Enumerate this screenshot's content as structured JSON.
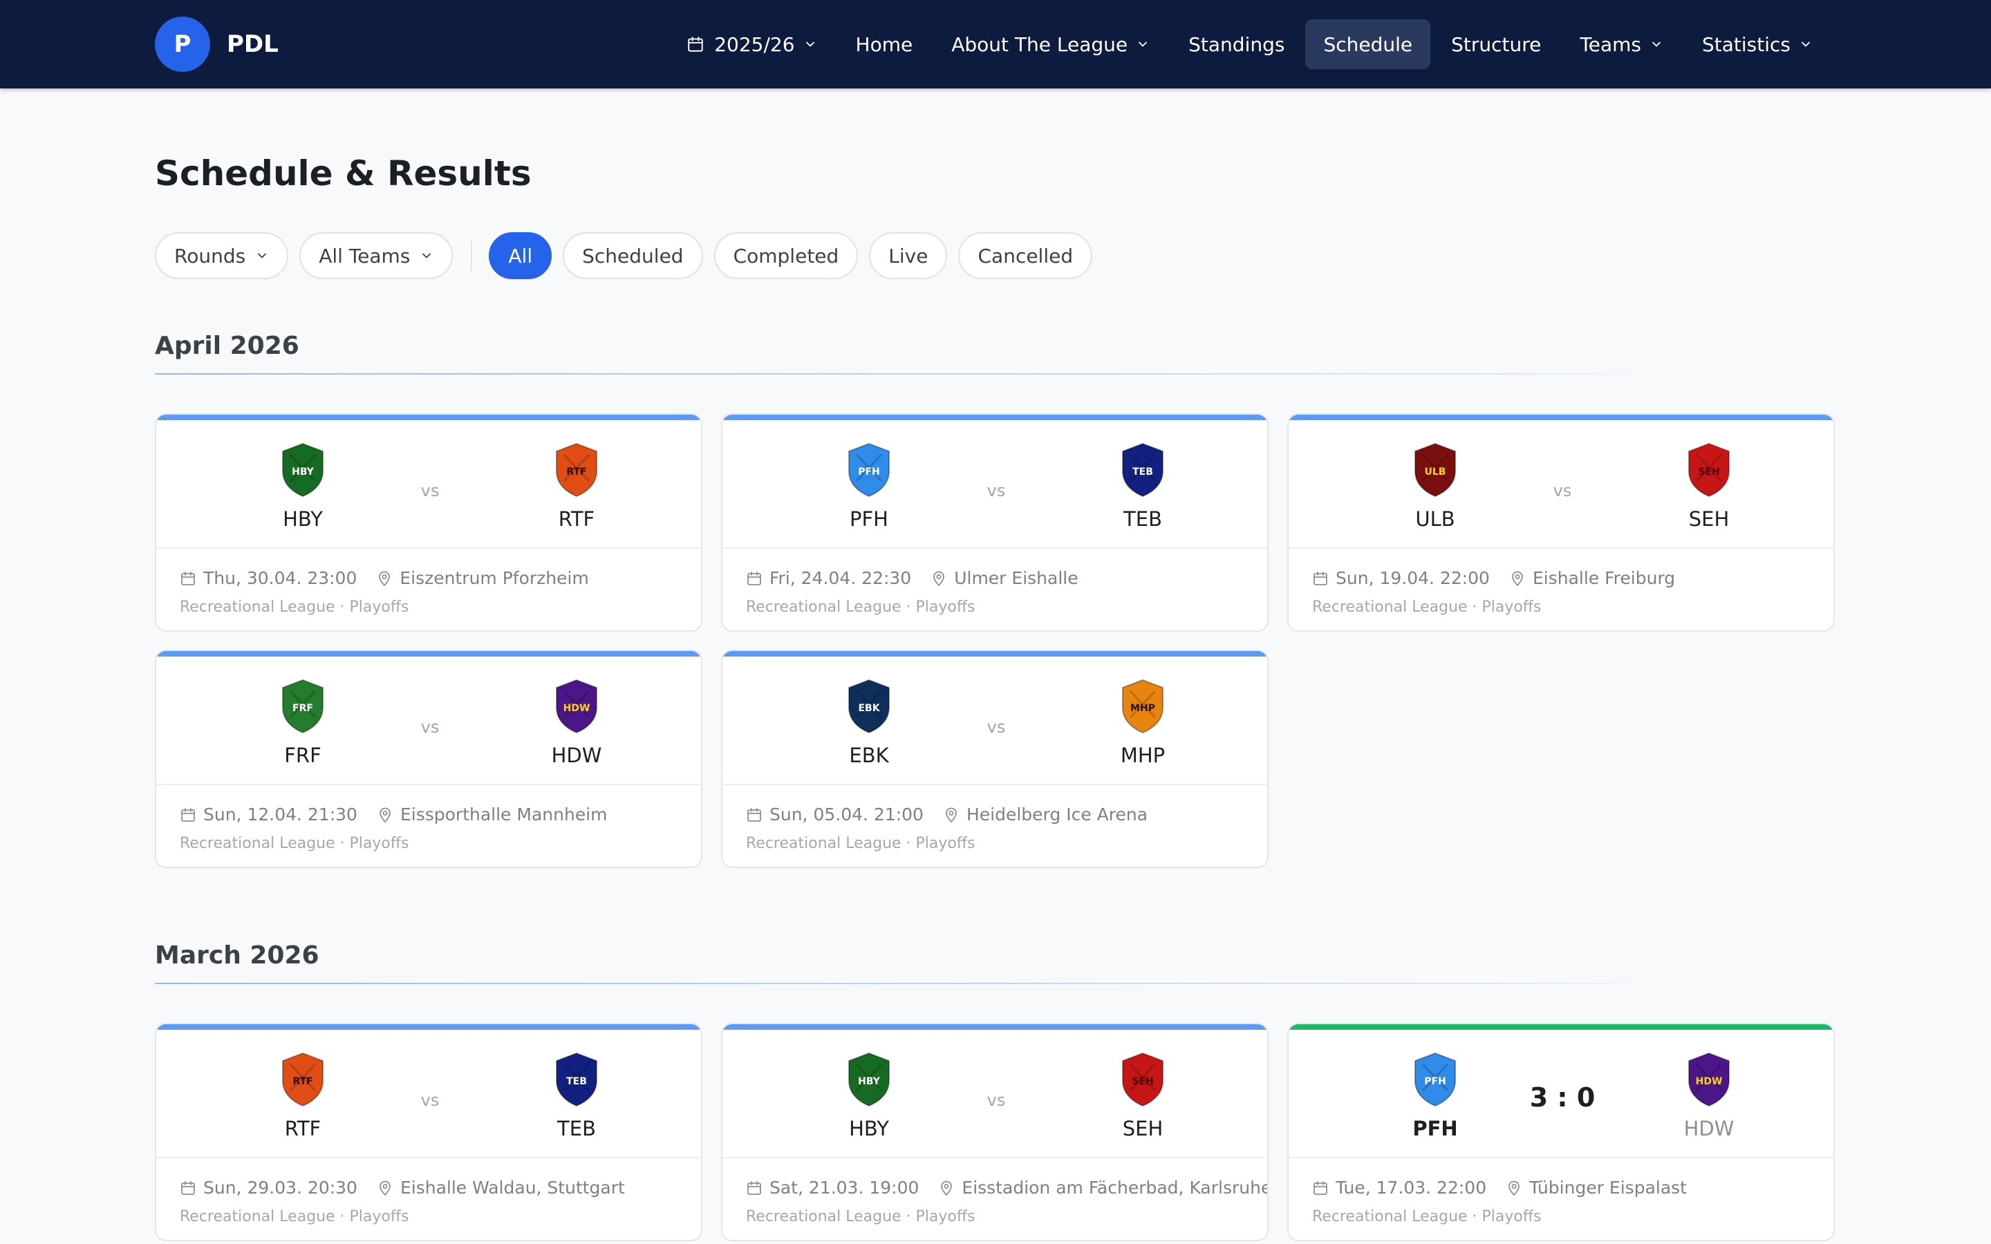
{
  "brand": {
    "logo_letter": "P",
    "name": "PDL"
  },
  "nav": {
    "season": "2025/26",
    "items": [
      {
        "label": "Home",
        "dropdown": false,
        "active": false
      },
      {
        "label": "About The League",
        "dropdown": true,
        "active": false
      },
      {
        "label": "Standings",
        "dropdown": false,
        "active": false
      },
      {
        "label": "Schedule",
        "dropdown": false,
        "active": true
      },
      {
        "label": "Structure",
        "dropdown": false,
        "active": false
      },
      {
        "label": "Teams",
        "dropdown": true,
        "active": false
      },
      {
        "label": "Statistics",
        "dropdown": true,
        "active": false
      }
    ]
  },
  "page": {
    "title": "Schedule & Results"
  },
  "filters": {
    "dropdowns": [
      "Rounds",
      "All Teams"
    ],
    "status_pills": [
      "All",
      "Scheduled",
      "Completed",
      "Live",
      "Cancelled"
    ],
    "active_status": "All"
  },
  "vs_label": "vs",
  "teams": {
    "HBY": {
      "color": "#166b22",
      "text": "#ffffff"
    },
    "RTF": {
      "color": "#e04e16",
      "text": "#2b0d00"
    },
    "PFH": {
      "color": "#2f8ce8",
      "text": "#ffffff"
    },
    "TEB": {
      "color": "#12217f",
      "text": "#ffffff"
    },
    "ULB": {
      "color": "#7a0f0f",
      "text": "#ffd21a"
    },
    "SEH": {
      "color": "#c61616",
      "text": "#4a0000"
    },
    "FRF": {
      "color": "#237d2c",
      "text": "#ffffff"
    },
    "HDW": {
      "color": "#4b1687",
      "text": "#ffd21a"
    },
    "EBK": {
      "color": "#0e2f5a",
      "text": "#ffffff"
    },
    "MHP": {
      "color": "#e8850e",
      "text": "#2b1400"
    }
  },
  "sections": [
    {
      "month": "April 2026",
      "games": [
        {
          "home": "HBY",
          "away": "RTF",
          "status": "scheduled",
          "datetime": "Thu, 30.04. 23:00",
          "venue": "Eiszentrum Pforzheim",
          "league": "Recreational League · Playoffs"
        },
        {
          "home": "PFH",
          "away": "TEB",
          "status": "scheduled",
          "datetime": "Fri, 24.04. 22:30",
          "venue": "Ulmer Eishalle",
          "league": "Recreational League · Playoffs"
        },
        {
          "home": "ULB",
          "away": "SEH",
          "status": "scheduled",
          "datetime": "Sun, 19.04. 22:00",
          "venue": "Eishalle Freiburg",
          "league": "Recreational League · Playoffs"
        },
        {
          "home": "FRF",
          "away": "HDW",
          "status": "scheduled",
          "datetime": "Sun, 12.04. 21:30",
          "venue": "Eissporthalle Mannheim",
          "league": "Recreational League · Playoffs"
        },
        {
          "home": "EBK",
          "away": "MHP",
          "status": "scheduled",
          "datetime": "Sun, 05.04. 21:00",
          "venue": "Heidelberg Ice Arena",
          "league": "Recreational League · Playoffs"
        }
      ]
    },
    {
      "month": "March 2026",
      "games": [
        {
          "home": "RTF",
          "away": "TEB",
          "status": "scheduled",
          "datetime": "Sun, 29.03. 20:30",
          "venue": "Eishalle Waldau, Stuttgart",
          "league": "Recreational League · Playoffs"
        },
        {
          "home": "HBY",
          "away": "SEH",
          "status": "scheduled",
          "datetime": "Sat, 21.03. 19:00",
          "venue": "Eisstadion am Fächerbad, Karlsruhe",
          "league": "Recreational League · Playoffs"
        },
        {
          "home": "PFH",
          "away": "HDW",
          "status": "completed",
          "score": "3 : 0",
          "datetime": "Tue, 17.03. 22:00",
          "venue": "Tübinger Eispalast",
          "league": "Recreational League · Playoffs"
        }
      ]
    }
  ]
}
